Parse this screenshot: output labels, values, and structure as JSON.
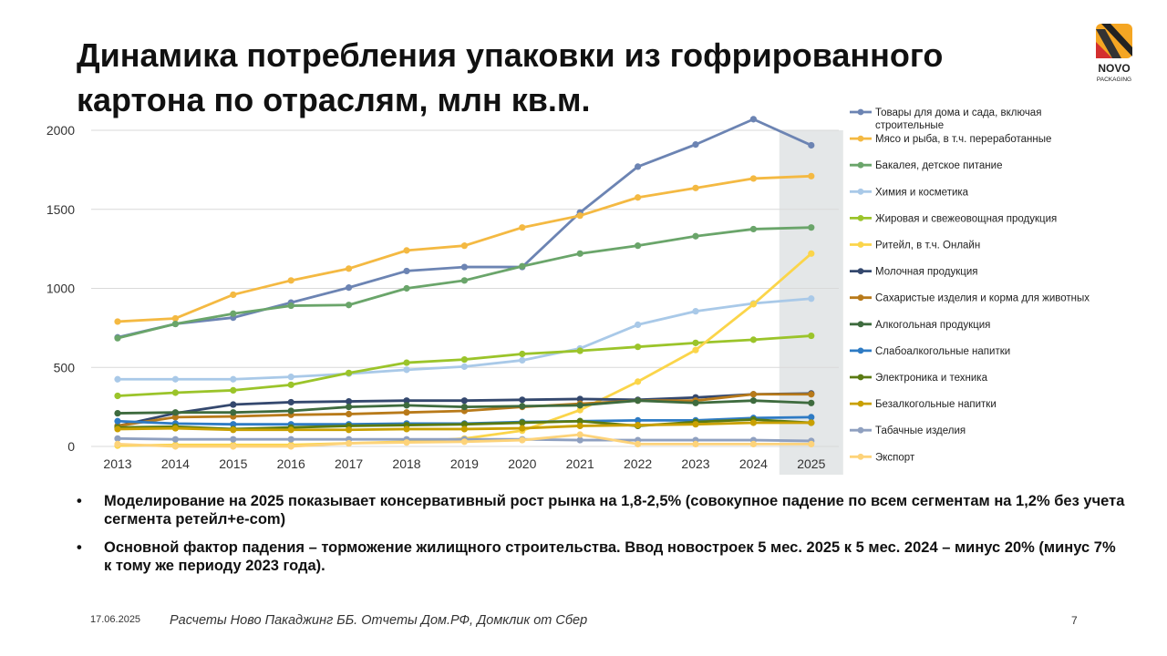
{
  "title": "Динамика потребления упаковки из гофрированного картона по отраслям, млн кв.м.",
  "logo": {
    "text": "NOVO",
    "subtext": "PACKAGING"
  },
  "bullets": [
    "Моделирование на 2025 показывает консервативный рост рынка на 1,8-2,5% (совокупное падение по всем сегментам на 1,2% без учета сегмента ретейл+e-com)",
    "Основной фактор падения – торможение жилищного строительства. Ввод новостроек 5 мес. 2025 к 5 мес. 2024 – минус 20% (минус 7% к тому же периоду 2023 года)."
  ],
  "footer": {
    "date": "17.06.2025",
    "source": "Расчеты Ново Пакаджинг ББ. Отчеты Дом.РФ, Домклик от Сбер",
    "page": "7"
  },
  "chart_data": {
    "type": "line",
    "title": "",
    "categories": [
      "2013",
      "2014",
      "2015",
      "2016",
      "2017",
      "2018",
      "2019",
      "2020",
      "2021",
      "2022",
      "2023",
      "2024",
      "2025"
    ],
    "highlight_category": "2025",
    "ylim": [
      0,
      2000
    ],
    "yticks": [
      0,
      500,
      1000,
      1500,
      2000
    ],
    "grid": true,
    "legend": "right",
    "series": [
      {
        "name": "Товары для дома и сада, включая строительные",
        "color": "#6c84b3",
        "values": [
          690,
          775,
          815,
          910,
          1005,
          1110,
          1135,
          1135,
          1480,
          1770,
          1910,
          2070,
          1905
        ]
      },
      {
        "name": "Мясо и рыба, в т.ч. переработанные",
        "color": "#f4b942",
        "values": [
          790,
          810,
          960,
          1050,
          1125,
          1240,
          1270,
          1385,
          1460,
          1575,
          1635,
          1695,
          1710
        ]
      },
      {
        "name": "Бакалея, детское питание",
        "color": "#6aa56a",
        "values": [
          685,
          775,
          840,
          890,
          895,
          1000,
          1050,
          1140,
          1220,
          1270,
          1330,
          1375,
          1385
        ]
      },
      {
        "name": "Химия и косметика",
        "color": "#a9c9e8",
        "values": [
          425,
          425,
          425,
          440,
          460,
          485,
          505,
          545,
          620,
          770,
          855,
          905,
          935
        ]
      },
      {
        "name": "Жировая и свежеовощная продукция",
        "color": "#9bc42a",
        "values": [
          320,
          340,
          355,
          390,
          465,
          530,
          550,
          585,
          605,
          630,
          655,
          675,
          700
        ]
      },
      {
        "name": "Ритейл, в т.ч. Онлайн",
        "color": "#fbd54a",
        "values": [
          5,
          10,
          10,
          10,
          20,
          30,
          50,
          100,
          230,
          410,
          610,
          900,
          1220
        ]
      },
      {
        "name": "Молочная продукция",
        "color": "#34486e",
        "values": [
          130,
          210,
          265,
          280,
          285,
          290,
          290,
          295,
          300,
          295,
          310,
          330,
          335
        ]
      },
      {
        "name": "Сахаристые изделия и корма для животных",
        "color": "#b87a1a",
        "values": [
          130,
          185,
          190,
          200,
          205,
          215,
          225,
          250,
          270,
          290,
          290,
          330,
          330
        ]
      },
      {
        "name": "Алкогольная продукция",
        "color": "#3e6b3e",
        "values": [
          210,
          215,
          215,
          225,
          250,
          260,
          250,
          255,
          260,
          290,
          275,
          290,
          275
        ]
      },
      {
        "name": "Слабоалкогольные напитки",
        "color": "#2e7bc4",
        "values": [
          160,
          145,
          140,
          140,
          140,
          145,
          145,
          155,
          160,
          165,
          165,
          180,
          185
        ]
      },
      {
        "name": "Электроника и техника",
        "color": "#5a7a12",
        "values": [
          120,
          125,
          110,
          120,
          130,
          135,
          140,
          150,
          160,
          130,
          155,
          170,
          150
        ]
      },
      {
        "name": "Безалкогольные напитки",
        "color": "#c9a000",
        "values": [
          110,
          115,
          105,
          105,
          105,
          110,
          110,
          115,
          130,
          135,
          140,
          150,
          150
        ]
      },
      {
        "name": "Табачные изделия",
        "color": "#8fa0c0",
        "values": [
          50,
          45,
          45,
          45,
          45,
          45,
          45,
          45,
          40,
          40,
          40,
          40,
          35
        ]
      },
      {
        "name": "Экспорт",
        "color": "#fdd37a",
        "values": [
          15,
          0,
          0,
          0,
          20,
          25,
          30,
          40,
          75,
          15,
          15,
          15,
          15
        ]
      }
    ]
  }
}
